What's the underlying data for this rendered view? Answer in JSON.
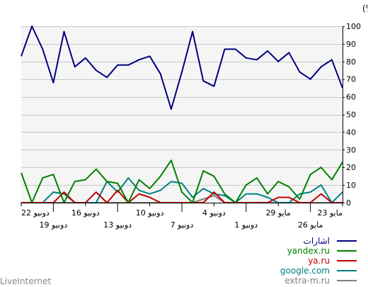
{
  "watermark": "LiveInternet",
  "chart_data": {
    "type": "line",
    "title": "الحصه(%)",
    "ylim": [
      0,
      100
    ],
    "yticks": [
      0,
      10,
      20,
      30,
      40,
      50,
      60,
      70,
      80,
      90,
      100
    ],
    "grid": true,
    "legend_position": "bottom-right",
    "xticks_upper": [
      "22 دونيو",
      "16 دونيو",
      "10 دونيو",
      "4 دونيو",
      "29 مايو",
      "23 مايو"
    ],
    "xticks_lower": [
      "19 دونيو",
      "13 دونيو",
      "7 دونيو",
      "1 دونيو",
      "26 مايو"
    ],
    "series": [
      {
        "name": "اشارات",
        "color": "#000080",
        "values": [
          83,
          100,
          87,
          68,
          97,
          77,
          82,
          75,
          71,
          78,
          78,
          81,
          83,
          73,
          53,
          74,
          97,
          69,
          66,
          87,
          87,
          82,
          81,
          86,
          80,
          85,
          74,
          70,
          77,
          81,
          65
        ]
      },
      {
        "name": "yandex.ru",
        "color": "#008000",
        "values": [
          17,
          0,
          14,
          16,
          0,
          12,
          13,
          19,
          12,
          11,
          0,
          13,
          8,
          15,
          24,
          6,
          0,
          18,
          15,
          5,
          0,
          10,
          14,
          5,
          12,
          9,
          2,
          16,
          20,
          13,
          23
        ]
      },
      {
        "name": "ya.ru",
        "color": "#c00000",
        "values": [
          0,
          0,
          0,
          0,
          6,
          0,
          0,
          6,
          0,
          7,
          0,
          5,
          3,
          0,
          0,
          0,
          0,
          0,
          6,
          0,
          0,
          0,
          0,
          0,
          3,
          3,
          0,
          0,
          5,
          0,
          0
        ]
      },
      {
        "name": "google.com",
        "color": "#008080",
        "values": [
          0,
          0,
          0,
          6,
          5,
          0,
          0,
          0,
          12,
          6,
          14,
          7,
          5,
          7,
          12,
          11,
          3,
          8,
          5,
          4,
          0,
          5,
          5,
          3,
          0,
          0,
          5,
          6,
          10,
          0,
          6
        ]
      },
      {
        "name": "extra-m.ru",
        "color": "#808080",
        "values": [
          0,
          0,
          0,
          0,
          0,
          0,
          0,
          0,
          0,
          0,
          0,
          0,
          0,
          0,
          0,
          0,
          0,
          2,
          4,
          0,
          0,
          0,
          0,
          0,
          0,
          0,
          0,
          0,
          0,
          0,
          0
        ]
      }
    ]
  }
}
